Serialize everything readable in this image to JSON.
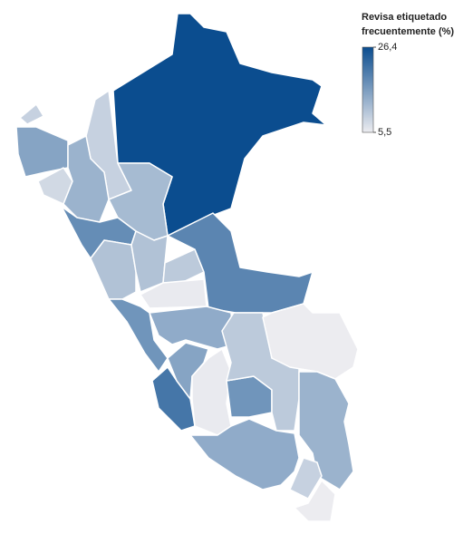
{
  "legend": {
    "title": [
      "Revisa etiquetado",
      "frecuentemente (%)"
    ],
    "ticks": [
      {
        "value": 26.4,
        "label": "26,4"
      },
      {
        "value": 5.5,
        "label": "5,5"
      }
    ],
    "low_color": "#ececf0",
    "high_color": "#0b4d8f"
  },
  "region_values": [
    26.4,
    9,
    15,
    8,
    9,
    13,
    12,
    18,
    11,
    11,
    10,
    19,
    5.8,
    17,
    14,
    21,
    15,
    5.8,
    17,
    10,
    5.5,
    13,
    14,
    9,
    5.5
  ]
}
